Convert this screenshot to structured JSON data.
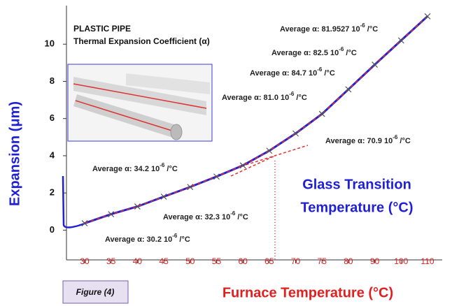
{
  "chart_data": {
    "type": "line",
    "title": "PLASTIC PIPE",
    "subtitle": "Thermal Expansion Coefficient (α)",
    "x_label": "Furnace Temperature (°C)",
    "y_label": "Expansion (μm)",
    "figure_label": "Figure (4)",
    "callout": [
      "Glass Transition",
      "Temperature (°C)"
    ],
    "categories": [
      "30",
      "35",
      "40",
      "45",
      "50",
      "55",
      "60",
      "65",
      "70",
      "75",
      "80",
      "90",
      "100",
      "110"
    ],
    "series": [
      {
        "color": "#1f1fd6",
        "values": [
          0.37,
          0.86,
          1.27,
          1.8,
          2.32,
          2.88,
          3.48,
          4.27,
          5.2,
          6.25,
          7.57,
          8.9,
          10.2,
          11.5
        ]
      }
    ],
    "ylim": [
      -1.6,
      12
    ],
    "yticks": [
      0,
      2,
      4,
      6,
      8,
      10
    ],
    "annotations": [
      {
        "text": "Average α: 81.9527 10",
        "sup": "-6",
        "unit": " /°C"
      },
      {
        "text": "Average α: 82.5 10",
        "sup": "-6",
        "unit": " /°C"
      },
      {
        "text": "Average α: 84.7 10",
        "sup": "-6",
        "unit": " /°C"
      },
      {
        "text": "Average α: 81.0 10",
        "sup": "-6",
        "unit": " /°C"
      },
      {
        "text": "Average α: 70.9 10",
        "sup": "-6",
        "unit": " /°C"
      },
      {
        "text": "Average α: 34.2 10",
        "sup": "-6",
        "unit": " /°C"
      },
      {
        "text": "Average α: 32.3 10",
        "sup": "-6",
        "unit": " /°C"
      },
      {
        "text": "Average α: 30.2 10",
        "sup": "-6",
        "unit": " /°C"
      }
    ]
  }
}
